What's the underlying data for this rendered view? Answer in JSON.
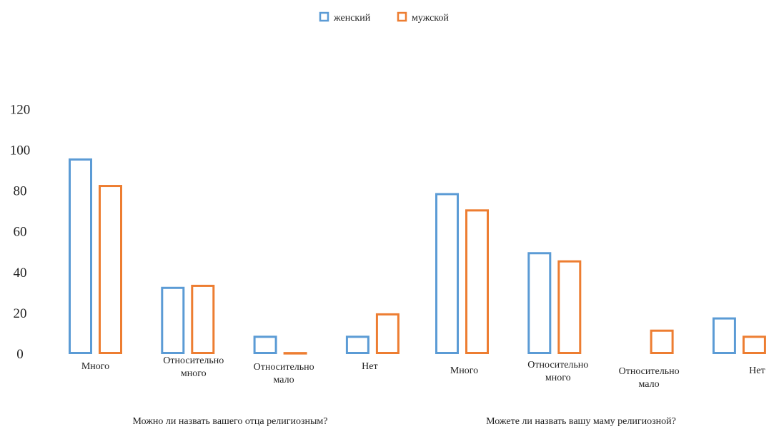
{
  "chart_data": {
    "type": "bar",
    "ylim": [
      0,
      120
    ],
    "yticks": [
      0,
      20,
      40,
      60,
      80,
      100,
      120
    ],
    "grid": false,
    "legend_position": "top-center",
    "colors": {
      "female": "#5B9BD5",
      "male": "#ED7D31"
    },
    "series": [
      {
        "name": "женский",
        "color": "#5B9BD5"
      },
      {
        "name": "мужской",
        "color": "#ED7D31"
      }
    ],
    "groups": [
      {
        "title": "Можно ли назвать вашего отца религиозным?",
        "categories": [
          "Много",
          "Относительно много",
          "Относительно мало",
          "Нет"
        ],
        "values": {
          "женский": [
            96,
            33,
            9,
            9
          ],
          "мужской": [
            83,
            34,
            1,
            20
          ]
        }
      },
      {
        "title": "Можете ли назвать вашу маму  религиозной?",
        "categories": [
          "Много",
          "Относительно много",
          "Относительно мало",
          "Нет"
        ],
        "values": {
          "женский": [
            79,
            50,
            0,
            18
          ],
          "мужской": [
            71,
            46,
            12,
            9
          ]
        }
      }
    ]
  }
}
